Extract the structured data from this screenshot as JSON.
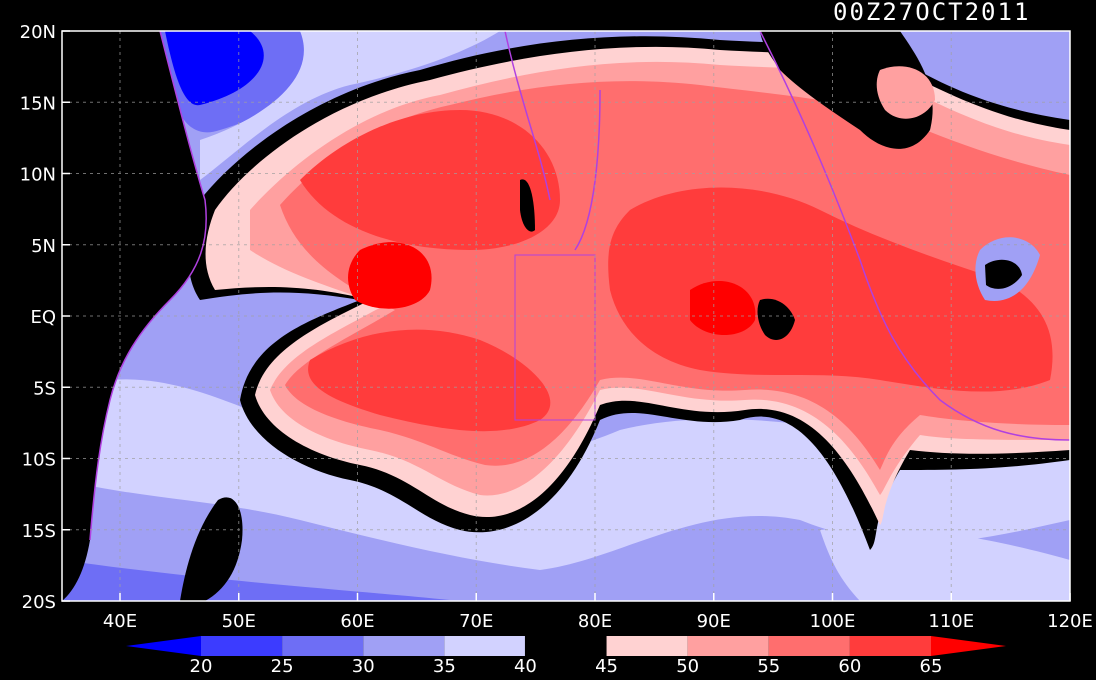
{
  "title": "00Z27OCT2011",
  "lat_labels": [
    "20N",
    "15N",
    "10N",
    "5N",
    "EQ",
    "5S",
    "10S",
    "15S",
    "20S"
  ],
  "lon_labels": [
    "40E",
    "50E",
    "60E",
    "70E",
    "80E",
    "90E",
    "100E",
    "110E",
    "120E"
  ],
  "legend": {
    "labels": [
      "20",
      "25",
      "30",
      "35",
      "40",
      "45",
      "50",
      "55",
      "60",
      "65"
    ],
    "colors": [
      "#0000ff",
      "#3c3cff",
      "#6e6ef5",
      "#a0a0f5",
      "#d2d2ff",
      "#000000",
      "#ffd2d2",
      "#ffa0a0",
      "#ff6e6e",
      "#ff3c3c",
      "#ff0000"
    ]
  },
  "palette": {
    "black": "#000000",
    "c35": "#a0a0f5",
    "c40": "#d2d2ff",
    "c30": "#6e6ef5",
    "c25": "#3c3cff",
    "c20": "#0000ff",
    "c50": "#ffd2d2",
    "c55": "#ffa0a0",
    "c60": "#ff6e6e",
    "c65": "#ff3c3c",
    "coast": "#b040e0",
    "grid": "#a0a0a0"
  }
}
